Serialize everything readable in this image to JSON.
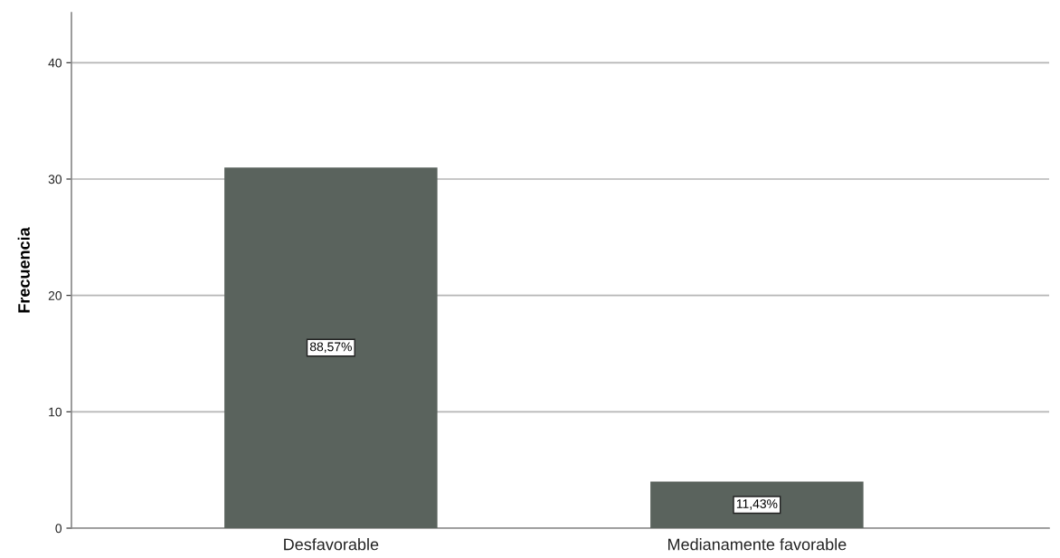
{
  "chart_data": {
    "type": "bar",
    "ylabel": "Frecuencia",
    "categories": [
      "Desfavorable",
      "Medianamente favorable"
    ],
    "values": [
      31,
      4
    ],
    "color": "#5a635d",
    "annotations": [
      "88,57%",
      "11,43%"
    ],
    "ylim": [
      0,
      44.3
    ],
    "yticks": [
      0,
      10,
      20,
      30,
      40
    ],
    "grid": "y",
    "legend": false
  }
}
